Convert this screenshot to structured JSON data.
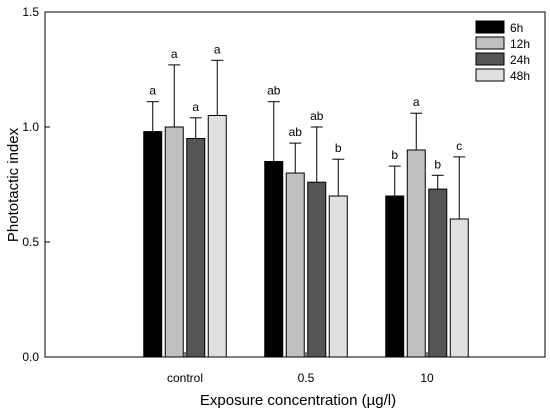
{
  "chart_data": {
    "type": "bar",
    "title": "",
    "xlabel": "Exposure concentration (µg/l)",
    "ylabel": "Phototactic index",
    "categories": [
      "control",
      "0.5",
      "10"
    ],
    "ylim": [
      0,
      1.5
    ],
    "yticks": [
      "0.0",
      "0.5",
      "1.0",
      "1.5"
    ],
    "legend_position": "top-right",
    "series": [
      {
        "name": "6h",
        "color": "#000000",
        "values": [
          0.98,
          0.85,
          0.7
        ],
        "errors": [
          0.13,
          0.26,
          0.13
        ],
        "letters": [
          "a",
          "ab",
          "b"
        ]
      },
      {
        "name": "12h",
        "color": "#c0c0c0",
        "values": [
          1.0,
          0.8,
          0.9
        ],
        "errors": [
          0.27,
          0.13,
          0.16
        ],
        "letters": [
          "a",
          "ab",
          "a"
        ]
      },
      {
        "name": "24h",
        "color": "#555555",
        "values": [
          0.95,
          0.76,
          0.73
        ],
        "errors": [
          0.09,
          0.24,
          0.06
        ],
        "letters": [
          "a",
          "ab",
          "b"
        ]
      },
      {
        "name": "48h",
        "color": "#e0e0e0",
        "values": [
          1.05,
          0.7,
          0.6
        ],
        "errors": [
          0.24,
          0.16,
          0.27
        ],
        "letters": [
          "a",
          "b",
          "c"
        ]
      }
    ]
  }
}
